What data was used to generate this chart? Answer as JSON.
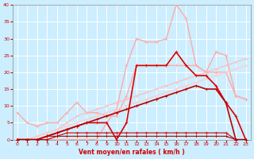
{
  "xlabel": "Vent moyen/en rafales ( km/h )",
  "background_color": "#cceeff",
  "grid_color": "#aaddcc",
  "xlim": [
    -0.5,
    23.5
  ],
  "ylim": [
    0,
    40
  ],
  "yticks": [
    0,
    5,
    10,
    15,
    20,
    25,
    30,
    35,
    40
  ],
  "xticks": [
    0,
    1,
    2,
    3,
    4,
    5,
    6,
    7,
    8,
    9,
    10,
    11,
    12,
    13,
    14,
    15,
    16,
    17,
    18,
    19,
    20,
    21,
    22,
    23
  ],
  "series": [
    {
      "x": [
        0,
        1,
        2,
        3,
        4,
        5,
        6,
        7,
        8,
        9,
        10,
        11,
        12,
        13,
        14,
        15,
        16,
        17,
        18,
        19,
        20,
        21,
        22,
        23
      ],
      "y": [
        0,
        0,
        0,
        0,
        0,
        0,
        0,
        0,
        0,
        5,
        9,
        22,
        30,
        29,
        29,
        30,
        40,
        36,
        22,
        20,
        20,
        20,
        13,
        12
      ],
      "color": "#ffaaaa",
      "alpha": 1.0,
      "lw": 1.0,
      "marker": "+",
      "ms": 3.5
    },
    {
      "x": [
        0,
        1,
        2,
        3,
        4,
        5,
        6,
        7,
        8,
        9,
        10,
        11,
        12,
        13,
        14,
        15,
        16,
        17,
        18,
        19,
        20,
        21,
        22,
        23
      ],
      "y": [
        8,
        5,
        4,
        5,
        5,
        8,
        11,
        8,
        8,
        7,
        7,
        13,
        22,
        22,
        22,
        22,
        22,
        22,
        22,
        20,
        26,
        25,
        13,
        12
      ],
      "color": "#ffaaaa",
      "alpha": 1.0,
      "lw": 1.0,
      "marker": "+",
      "ms": 3.5
    },
    {
      "x": [
        0,
        1,
        2,
        3,
        4,
        5,
        6,
        7,
        8,
        9,
        10,
        11,
        12,
        13,
        14,
        15,
        16,
        17,
        18,
        19,
        20,
        21,
        22,
        23
      ],
      "y": [
        0,
        0,
        1,
        2,
        3,
        5,
        7,
        8,
        9,
        10,
        11,
        12,
        13,
        14,
        15,
        16,
        17,
        18,
        19,
        20,
        21,
        22,
        23,
        24
      ],
      "color": "#ffbbbb",
      "alpha": 0.85,
      "lw": 1.0,
      "marker": "+",
      "ms": 3.0
    },
    {
      "x": [
        0,
        1,
        2,
        3,
        4,
        5,
        6,
        7,
        8,
        9,
        10,
        11,
        12,
        13,
        14,
        15,
        16,
        17,
        18,
        19,
        20,
        21,
        22,
        23
      ],
      "y": [
        0,
        0,
        1,
        2,
        3,
        4,
        5,
        6,
        7,
        8,
        9,
        10,
        11,
        12,
        13,
        14,
        15,
        16,
        17,
        18,
        19,
        20,
        21,
        22
      ],
      "color": "#ffcccc",
      "alpha": 0.9,
      "lw": 1.0,
      "marker": "+",
      "ms": 3.0
    },
    {
      "x": [
        0,
        1,
        2,
        3,
        4,
        5,
        6,
        7,
        8,
        9,
        10,
        11,
        12,
        13,
        14,
        15,
        16,
        17,
        18,
        19,
        20,
        21,
        22,
        23
      ],
      "y": [
        0,
        0,
        0,
        1,
        2,
        3,
        4,
        5,
        5,
        5,
        0,
        5,
        22,
        22,
        22,
        22,
        26,
        22,
        19,
        19,
        16,
        11,
        7,
        0
      ],
      "color": "#dd0000",
      "alpha": 1.0,
      "lw": 1.2,
      "marker": "+",
      "ms": 3.5
    },
    {
      "x": [
        0,
        1,
        2,
        3,
        4,
        5,
        6,
        7,
        8,
        9,
        10,
        11,
        12,
        13,
        14,
        15,
        16,
        17,
        18,
        19,
        20,
        21,
        22,
        23
      ],
      "y": [
        0,
        0,
        0,
        1,
        2,
        3,
        4,
        5,
        6,
        7,
        8,
        9,
        10,
        11,
        12,
        13,
        14,
        15,
        16,
        15,
        15,
        11,
        0,
        0
      ],
      "color": "#bb0000",
      "alpha": 1.0,
      "lw": 1.2,
      "marker": "+",
      "ms": 3.0
    },
    {
      "x": [
        0,
        1,
        2,
        3,
        4,
        5,
        6,
        7,
        8,
        9,
        10,
        11,
        12,
        13,
        14,
        15,
        16,
        17,
        18,
        19,
        20,
        21,
        22,
        23
      ],
      "y": [
        0,
        0,
        0,
        1,
        1,
        2,
        2,
        2,
        2,
        2,
        2,
        2,
        2,
        2,
        2,
        2,
        2,
        2,
        2,
        2,
        2,
        2,
        0,
        0
      ],
      "color": "#cc0000",
      "alpha": 1.0,
      "lw": 0.8,
      "marker": "+",
      "ms": 2.5
    },
    {
      "x": [
        0,
        1,
        2,
        3,
        4,
        5,
        6,
        7,
        8,
        9,
        10,
        11,
        12,
        13,
        14,
        15,
        16,
        17,
        18,
        19,
        20,
        21,
        22,
        23
      ],
      "y": [
        0,
        0,
        0,
        0,
        1,
        1,
        1,
        1,
        1,
        1,
        1,
        1,
        1,
        1,
        1,
        1,
        1,
        1,
        1,
        1,
        1,
        1,
        0,
        0
      ],
      "color": "#aa0000",
      "alpha": 1.0,
      "lw": 0.8,
      "marker": "+",
      "ms": 2.5
    }
  ]
}
